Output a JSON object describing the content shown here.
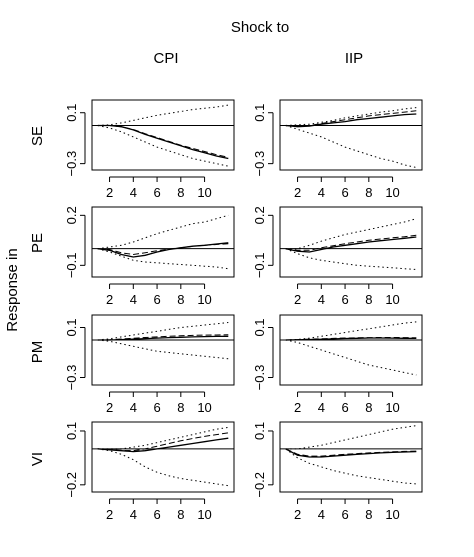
{
  "figure": {
    "main_label": "Shock to",
    "y_axis_label": "Response in"
  },
  "chart_data": {
    "type": "line",
    "column_labels": [
      "CPI",
      "IIP"
    ],
    "row_labels": [
      "SE",
      "PE",
      "PM",
      "VI"
    ],
    "x_ticks": [
      2,
      4,
      6,
      8,
      10
    ],
    "x_range": [
      1,
      12
    ],
    "line_styles": {
      "response": "solid",
      "alternative": "dashed",
      "confidence_band": "dotted",
      "zero_line": "solid"
    },
    "panels": [
      {
        "row": "SE",
        "column": "CPI",
        "ylim": [
          -0.35,
          0.2
        ],
        "y_ticks": [
          0.1,
          -0.3
        ],
        "y_tick_labels": [
          "0.1",
          "−0.3"
        ],
        "x": [
          1,
          2,
          3,
          4,
          5,
          6,
          7,
          8,
          9,
          10,
          11,
          12
        ],
        "series": [
          {
            "style": "solid",
            "values": [
              0,
              0,
              -0.01,
              -0.035,
              -0.07,
              -0.1,
              -0.13,
              -0.16,
              -0.19,
              -0.215,
              -0.24,
              -0.26
            ]
          },
          {
            "style": "dashed",
            "values": [
              0,
              0,
              -0.01,
              -0.032,
              -0.065,
              -0.095,
              -0.125,
              -0.155,
              -0.18,
              -0.205,
              -0.23,
              -0.25
            ]
          },
          {
            "style": "dotted",
            "values": [
              0,
              0.005,
              0.02,
              0.04,
              0.06,
              0.08,
              0.095,
              0.11,
              0.125,
              0.135,
              0.145,
              0.16
            ]
          },
          {
            "style": "dotted",
            "values": [
              0,
              -0.02,
              -0.05,
              -0.09,
              -0.13,
              -0.17,
              -0.2,
              -0.23,
              -0.26,
              -0.28,
              -0.3,
              -0.32
            ]
          }
        ]
      },
      {
        "row": "SE",
        "column": "IIP",
        "ylim": [
          -0.35,
          0.2
        ],
        "y_ticks": [
          0.1,
          -0.3
        ],
        "y_tick_labels": [
          "0.1",
          "−0.3"
        ],
        "x": [
          1,
          2,
          3,
          4,
          5,
          6,
          7,
          8,
          9,
          10,
          11,
          12
        ],
        "series": [
          {
            "style": "solid",
            "values": [
              0,
              -0.01,
              -0.005,
              0.01,
              0.02,
              0.03,
              0.045,
              0.055,
              0.065,
              0.075,
              0.085,
              0.09
            ]
          },
          {
            "style": "dashed",
            "values": [
              0,
              -0.005,
              0.0,
              0.015,
              0.03,
              0.045,
              0.06,
              0.075,
              0.085,
              0.095,
              0.105,
              0.115
            ]
          },
          {
            "style": "dotted",
            "values": [
              0,
              0.005,
              0.01,
              0.025,
              0.04,
              0.06,
              0.075,
              0.09,
              0.105,
              0.115,
              0.13,
              0.14
            ]
          },
          {
            "style": "dotted",
            "values": [
              0,
              -0.03,
              -0.06,
              -0.09,
              -0.13,
              -0.17,
              -0.2,
              -0.23,
              -0.26,
              -0.28,
              -0.31,
              -0.33
            ]
          }
        ]
      },
      {
        "row": "PE",
        "column": "CPI",
        "ylim": [
          -0.17,
          0.25
        ],
        "y_ticks": [
          0.2,
          -0.1
        ],
        "y_tick_labels": [
          "0.2",
          "−0.1"
        ],
        "x": [
          1,
          2,
          3,
          4,
          5,
          6,
          7,
          8,
          9,
          10,
          11,
          12
        ],
        "series": [
          {
            "style": "solid",
            "values": [
              0,
              -0.01,
              -0.035,
              -0.05,
              -0.04,
              -0.02,
              -0.005,
              0.005,
              0.015,
              0.02,
              0.028,
              0.035
            ]
          },
          {
            "style": "dashed",
            "values": [
              0,
              -0.005,
              -0.025,
              -0.035,
              -0.025,
              -0.012,
              -0.002,
              0.006,
              0.014,
              0.02,
              0.025,
              0.03
            ]
          },
          {
            "style": "dotted",
            "values": [
              0,
              0.01,
              0.02,
              0.04,
              0.065,
              0.09,
              0.11,
              0.13,
              0.15,
              0.16,
              0.18,
              0.2
            ]
          },
          {
            "style": "dotted",
            "values": [
              0,
              -0.02,
              -0.045,
              -0.07,
              -0.08,
              -0.085,
              -0.09,
              -0.095,
              -0.1,
              -0.105,
              -0.11,
              -0.12
            ]
          }
        ]
      },
      {
        "row": "PE",
        "column": "IIP",
        "ylim": [
          -0.17,
          0.25
        ],
        "y_ticks": [
          0.2,
          -0.1
        ],
        "y_tick_labels": [
          "0.2",
          "−0.1"
        ],
        "x": [
          1,
          2,
          3,
          4,
          5,
          6,
          7,
          8,
          9,
          10,
          11,
          12
        ],
        "series": [
          {
            "style": "solid",
            "values": [
              0,
              -0.015,
              -0.02,
              -0.005,
              0.01,
              0.02,
              0.03,
              0.04,
              0.048,
              0.055,
              0.062,
              0.07
            ]
          },
          {
            "style": "dashed",
            "values": [
              0,
              -0.01,
              -0.01,
              0.005,
              0.018,
              0.03,
              0.04,
              0.05,
              0.058,
              0.065,
              0.072,
              0.08
            ]
          },
          {
            "style": "dotted",
            "values": [
              0,
              0.0,
              0.02,
              0.045,
              0.065,
              0.085,
              0.1,
              0.115,
              0.13,
              0.145,
              0.16,
              0.18
            ]
          },
          {
            "style": "dotted",
            "values": [
              0,
              -0.03,
              -0.055,
              -0.07,
              -0.08,
              -0.09,
              -0.1,
              -0.105,
              -0.11,
              -0.115,
              -0.12,
              -0.125
            ]
          }
        ]
      },
      {
        "row": "PM",
        "column": "CPI",
        "ylim": [
          -0.36,
          0.2
        ],
        "y_ticks": [
          0.1,
          -0.3
        ],
        "y_tick_labels": [
          "0.1",
          "−0.3"
        ],
        "x": [
          1,
          2,
          3,
          4,
          5,
          6,
          7,
          8,
          9,
          10,
          11,
          12
        ],
        "series": [
          {
            "style": "solid",
            "values": [
              0,
              0,
              0.003,
              0.007,
              0.011,
              0.015,
              0.019,
              0.022,
              0.025,
              0.027,
              0.029,
              0.03
            ]
          },
          {
            "style": "dashed",
            "values": [
              0,
              0.002,
              0.008,
              0.014,
              0.02,
              0.025,
              0.03,
              0.034,
              0.037,
              0.039,
              0.04,
              0.042
            ]
          },
          {
            "style": "dotted",
            "values": [
              0,
              0.01,
              0.025,
              0.04,
              0.055,
              0.07,
              0.085,
              0.1,
              0.11,
              0.12,
              0.13,
              0.14
            ]
          },
          {
            "style": "dotted",
            "values": [
              0,
              -0.01,
              -0.03,
              -0.05,
              -0.07,
              -0.09,
              -0.1,
              -0.11,
              -0.12,
              -0.13,
              -0.14,
              -0.15
            ]
          }
        ]
      },
      {
        "row": "PM",
        "column": "IIP",
        "ylim": [
          -0.36,
          0.2
        ],
        "y_ticks": [
          0.1,
          -0.3
        ],
        "y_tick_labels": [
          "0.1",
          "−0.3"
        ],
        "x": [
          1,
          2,
          3,
          4,
          5,
          6,
          7,
          8,
          9,
          10,
          11,
          12
        ],
        "series": [
          {
            "style": "solid",
            "values": [
              0,
              0.002,
              0.004,
              0.006,
              0.009,
              0.012,
              0.014,
              0.016,
              0.016,
              0.015,
              0.014,
              0.013
            ]
          },
          {
            "style": "dashed",
            "values": [
              0,
              0.003,
              0.007,
              0.01,
              0.013,
              0.016,
              0.018,
              0.019,
              0.02,
              0.02,
              0.019,
              0.018
            ]
          },
          {
            "style": "dotted",
            "values": [
              0,
              0.005,
              0.015,
              0.03,
              0.045,
              0.06,
              0.075,
              0.09,
              0.105,
              0.12,
              0.135,
              0.145
            ]
          },
          {
            "style": "dotted",
            "values": [
              0,
              -0.02,
              -0.05,
              -0.08,
              -0.11,
              -0.14,
              -0.17,
              -0.2,
              -0.22,
              -0.24,
              -0.26,
              -0.28
            ]
          }
        ]
      },
      {
        "row": "VI",
        "column": "CPI",
        "ylim": [
          -0.24,
          0.15
        ],
        "y_ticks": [
          0.1,
          -0.2
        ],
        "y_tick_labels": [
          "0.1",
          "−0.2"
        ],
        "x": [
          1,
          2,
          3,
          4,
          5,
          6,
          7,
          8,
          9,
          10,
          11,
          12
        ],
        "series": [
          {
            "style": "solid",
            "values": [
              0,
              -0.005,
              -0.01,
              -0.015,
              -0.01,
              0.0,
              0.01,
              0.02,
              0.03,
              0.04,
              0.05,
              0.06
            ]
          },
          {
            "style": "dashed",
            "values": [
              0,
              -0.003,
              -0.008,
              -0.01,
              0.0,
              0.015,
              0.03,
              0.045,
              0.058,
              0.07,
              0.08,
              0.09
            ]
          },
          {
            "style": "dotted",
            "values": [
              0,
              0.0,
              0.0,
              0.01,
              0.02,
              0.035,
              0.05,
              0.065,
              0.08,
              0.095,
              0.11,
              0.12
            ]
          },
          {
            "style": "dotted",
            "values": [
              0,
              -0.01,
              -0.03,
              -0.06,
              -0.1,
              -0.13,
              -0.15,
              -0.165,
              -0.175,
              -0.185,
              -0.195,
              -0.205
            ]
          }
        ]
      },
      {
        "row": "VI",
        "column": "IIP",
        "ylim": [
          -0.24,
          0.15
        ],
        "y_ticks": [
          0.1,
          -0.2
        ],
        "y_tick_labels": [
          "0.1",
          "−0.2"
        ],
        "x": [
          1,
          2,
          3,
          4,
          5,
          6,
          7,
          8,
          9,
          10,
          11,
          12
        ],
        "series": [
          {
            "style": "solid",
            "values": [
              0,
              -0.035,
              -0.045,
              -0.045,
              -0.04,
              -0.035,
              -0.03,
              -0.026,
              -0.022,
              -0.019,
              -0.017,
              -0.015
            ]
          },
          {
            "style": "dashed",
            "values": [
              0,
              -0.03,
              -0.04,
              -0.04,
              -0.035,
              -0.03,
              -0.026,
              -0.022,
              -0.019,
              -0.016,
              -0.014,
              -0.012
            ]
          },
          {
            "style": "dotted",
            "values": [
              0,
              0.0,
              0.01,
              0.02,
              0.035,
              0.05,
              0.065,
              0.08,
              0.095,
              0.11,
              0.12,
              0.13
            ]
          },
          {
            "style": "dotted",
            "values": [
              0,
              -0.05,
              -0.08,
              -0.1,
              -0.12,
              -0.135,
              -0.15,
              -0.16,
              -0.17,
              -0.18,
              -0.19,
              -0.195
            ]
          }
        ]
      }
    ]
  }
}
